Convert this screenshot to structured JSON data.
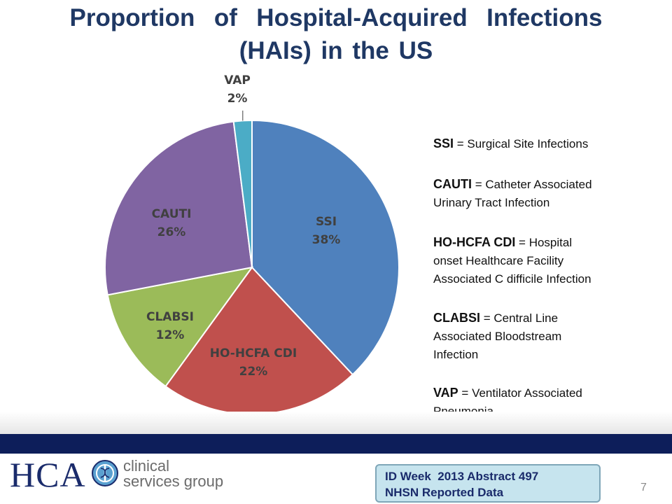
{
  "title": {
    "line1": "Proportion  of  Hospital-Acquired  Infections",
    "line2": "(HAIs) in the US"
  },
  "chart_data": {
    "type": "pie",
    "title": "",
    "slices": [
      {
        "label": "SSI",
        "value": 38,
        "value_label": "38%",
        "color": "#4f81bd"
      },
      {
        "label": "HO-HCFA CDI",
        "value": 22,
        "value_label": "22%",
        "color": "#c0504d"
      },
      {
        "label": "CLABSI",
        "value": 12,
        "value_label": "12%",
        "color": "#9bbb59"
      },
      {
        "label": "CAUTI",
        "value": 26,
        "value_label": "26%",
        "color": "#8064a2"
      },
      {
        "label": "VAP",
        "value": 2,
        "value_label": "2%",
        "color": "#4bacc6"
      }
    ],
    "start": "12 o'clock",
    "direction": "clockwise"
  },
  "legend": [
    {
      "abbr": "SSI",
      "sep": " = ",
      "lines": [
        "Surgical Site Infections"
      ]
    },
    {
      "abbr": "CAUTI",
      "sep": " = ",
      "lines": [
        "Catheter Associated",
        "Urinary Tract Infection"
      ]
    },
    {
      "abbr": "HO-HCFA CDI",
      "sep": " = ",
      "lines": [
        "Hospital",
        "onset Healthcare Facility",
        "Associated C difficile Infection"
      ]
    },
    {
      "abbr": "CLABSI",
      "sep": " = ",
      "lines": [
        "Central Line",
        "Associated Bloodstream",
        "Infection"
      ]
    },
    {
      "abbr": "VAP",
      "sep": " = ",
      "lines": [
        "Ventilator Associated",
        "Pneumonia"
      ]
    }
  ],
  "footer": {
    "logo_text": "HCA",
    "logo_sub_line1": "clinical",
    "logo_sub_line2": "services group",
    "source_line1": "ID Week  2013 Abstract 497",
    "source_line2": "NHSN Reported Data",
    "page_number": "7"
  },
  "colors": {
    "title": "#1f3864",
    "navy_bar": "#0d1e5a",
    "source_box_bg": "#c6e4ee"
  }
}
